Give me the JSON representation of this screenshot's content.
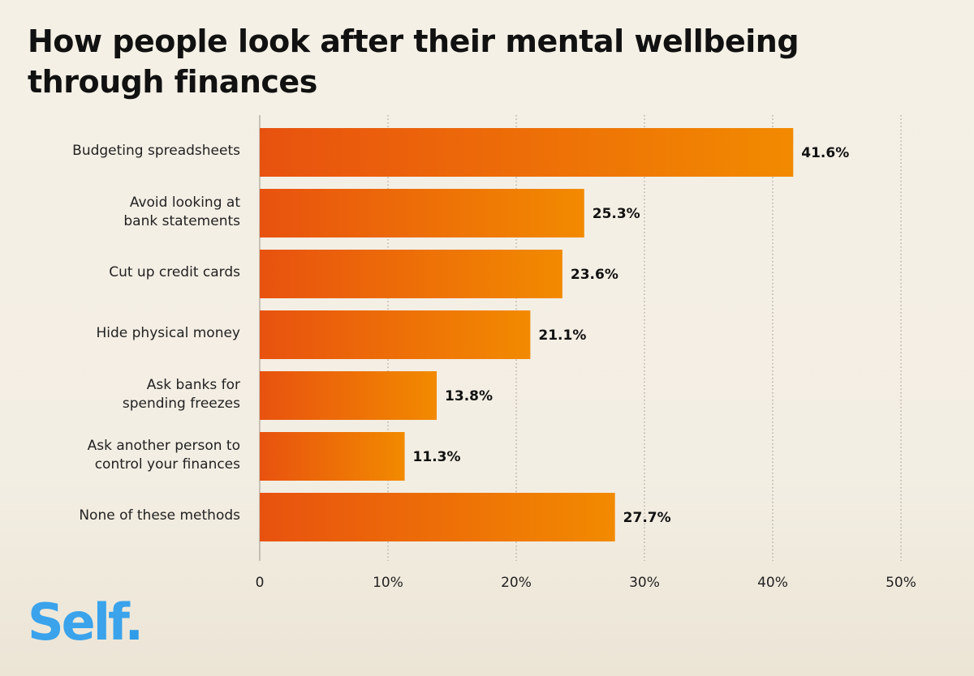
{
  "title": "How people look after their mental wellbeing through finances",
  "brand": {
    "name": "Self",
    "dot": ".",
    "color": "#3aa3eb"
  },
  "colors": {
    "bar_start": "#e8520f",
    "bar_end": "#f28a00",
    "grid": "#9a9488"
  },
  "chart_data": {
    "type": "bar",
    "orientation": "horizontal",
    "categories": [
      [
        "Budgeting spreadsheets"
      ],
      [
        "Avoid looking at",
        "bank statements"
      ],
      [
        "Cut up credit cards"
      ],
      [
        "Hide physical money"
      ],
      [
        "Ask banks for",
        "spending freezes"
      ],
      [
        "Ask another person to",
        "control your finances"
      ],
      [
        "None of these methods"
      ]
    ],
    "values": [
      41.6,
      25.3,
      23.6,
      21.1,
      13.8,
      11.3,
      27.7
    ],
    "value_labels": [
      "41.6%",
      "25.3%",
      "23.6%",
      "21.1%",
      "13.8%",
      "11.3%",
      "27.7%"
    ],
    "xlim": [
      0,
      50
    ],
    "ticks": [
      0,
      10,
      20,
      30,
      40,
      50
    ],
    "tick_labels": [
      "0",
      "10%",
      "20%",
      "30%",
      "40%",
      "50%"
    ],
    "grid": "vertical-dotted",
    "legend": "none"
  }
}
